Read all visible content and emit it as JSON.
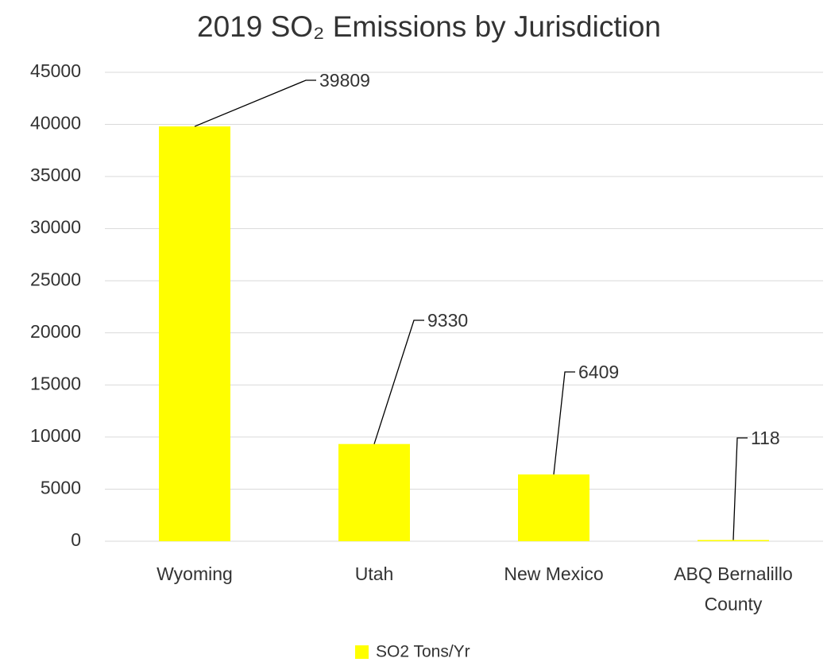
{
  "chart_data": {
    "type": "bar",
    "title": "2019 SO₂ Emissions by Jurisdiction",
    "categories": [
      "Wyoming",
      "Utah",
      "New Mexico",
      "ABQ Bernalillo County"
    ],
    "series": [
      {
        "name": "SO2 Tons/Yr",
        "color": "#ffff00",
        "values": [
          39809,
          9330,
          6409,
          118
        ]
      }
    ],
    "ylim": [
      0,
      45000
    ],
    "yticks": [
      0,
      5000,
      10000,
      15000,
      20000,
      25000,
      30000,
      35000,
      40000,
      45000
    ],
    "grid": true,
    "legend": "bottom"
  }
}
